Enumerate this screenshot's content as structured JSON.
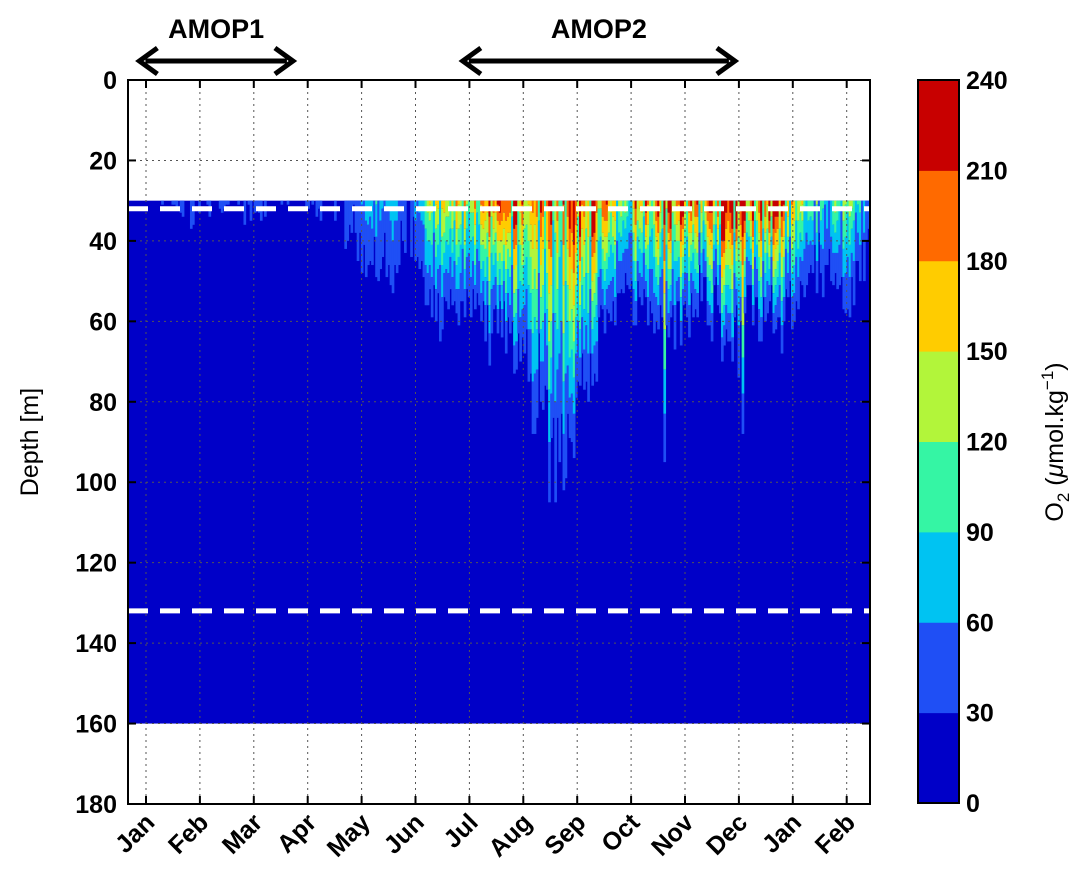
{
  "chart_data": {
    "type": "heatmap",
    "ylabel": "Depth [m]",
    "y_range": [
      0,
      180
    ],
    "y_inverted": true,
    "y_ticks": [
      "0",
      "20",
      "40",
      "60",
      "80",
      "100",
      "120",
      "140",
      "160",
      "180"
    ],
    "y_tick_values": [
      0,
      20,
      40,
      60,
      80,
      100,
      120,
      140,
      160,
      180
    ],
    "x_ticks": [
      "Jan",
      "Feb",
      "Mar",
      "Apr",
      "May",
      "Jun",
      "Jul",
      "Aug",
      "Sep",
      "Oct",
      "Nov",
      "Dec",
      "Jan",
      "Feb"
    ],
    "x_range_months": [
      0,
      13.8
    ],
    "grid": true,
    "data_depth_range": [
      30,
      160
    ],
    "reference_depths": [
      32,
      132
    ],
    "colorbar": {
      "levels": [
        0,
        30,
        60,
        90,
        120,
        150,
        180,
        210,
        240
      ],
      "tick_labels": [
        "0",
        "30",
        "60",
        "90",
        "120",
        "150",
        "180",
        "210",
        "240"
      ],
      "colors": [
        "#0000c8",
        "#1f4ff5",
        "#00c3f2",
        "#35f5a4",
        "#b2f53a",
        "#ffcc00",
        "#ff6a00",
        "#c80000"
      ],
      "label_main": "O",
      "label_sub": "2",
      "label_unit_prefix": " (",
      "label_unit_mu": "μ",
      "label_unit_text": "mol.kg",
      "label_unit_exp": "−1",
      "label_unit_suffix": ")"
    },
    "campaigns": [
      {
        "label": "AMOP1",
        "start_month": 0.1,
        "end_month": 2.8
      },
      {
        "label": "AMOP2",
        "start_month": 6.1,
        "end_month": 11.0
      }
    ],
    "profiles": [
      {
        "month": 0.2,
        "max_o2": 25,
        "o2_at_30": 25,
        "penetration_depth": 30
      },
      {
        "month": 0.8,
        "max_o2": 30,
        "o2_at_30": 30,
        "penetration_depth": 55
      },
      {
        "month": 1.5,
        "max_o2": 25,
        "o2_at_30": 25,
        "penetration_depth": 40
      },
      {
        "month": 1.9,
        "max_o2": 30,
        "o2_at_30": 30,
        "penetration_depth": 62
      },
      {
        "month": 2.7,
        "max_o2": 20,
        "o2_at_30": 20,
        "penetration_depth": 30
      },
      {
        "month": 3.4,
        "max_o2": 30,
        "o2_at_30": 30,
        "penetration_depth": 60
      },
      {
        "month": 3.9,
        "max_o2": 40,
        "o2_at_30": 40,
        "penetration_depth": 62
      },
      {
        "month": 4.3,
        "max_o2": 70,
        "o2_at_30": 70,
        "penetration_depth": 66
      },
      {
        "month": 4.9,
        "max_o2": 50,
        "o2_at_30": 50,
        "penetration_depth": 68
      },
      {
        "month": 5.1,
        "max_o2": 90,
        "o2_at_30": 90,
        "penetration_depth": 60
      },
      {
        "month": 5.4,
        "max_o2": 120,
        "o2_at_30": 120,
        "penetration_depth": 65
      },
      {
        "month": 5.8,
        "max_o2": 140,
        "o2_at_30": 140,
        "penetration_depth": 68
      },
      {
        "month": 6.2,
        "max_o2": 150,
        "o2_at_30": 150,
        "penetration_depth": 67
      },
      {
        "month": 6.7,
        "max_o2": 175,
        "o2_at_30": 175,
        "penetration_depth": 70
      },
      {
        "month": 7.2,
        "max_o2": 170,
        "o2_at_30": 170,
        "penetration_depth": 90
      },
      {
        "month": 7.6,
        "max_o2": 165,
        "o2_at_30": 165,
        "penetration_depth": 120
      },
      {
        "month": 8.0,
        "max_o2": 180,
        "o2_at_30": 180,
        "penetration_depth": 100
      },
      {
        "month": 8.4,
        "max_o2": 200,
        "o2_at_30": 200,
        "penetration_depth": 70
      },
      {
        "month": 8.8,
        "max_o2": 100,
        "o2_at_30": 100,
        "penetration_depth": 60
      },
      {
        "month": 9.2,
        "max_o2": 185,
        "o2_at_30": 185,
        "penetration_depth": 65
      },
      {
        "month": 9.6,
        "max_o2": 205,
        "o2_at_30": 205,
        "penetration_depth": 70
      },
      {
        "month": 10.0,
        "max_o2": 175,
        "o2_at_30": 175,
        "penetration_depth": 67
      },
      {
        "month": 10.4,
        "max_o2": 165,
        "o2_at_30": 165,
        "penetration_depth": 62
      },
      {
        "month": 10.8,
        "max_o2": 215,
        "o2_at_30": 215,
        "penetration_depth": 72
      },
      {
        "month": 11.2,
        "max_o2": 180,
        "o2_at_30": 180,
        "penetration_depth": 64
      },
      {
        "month": 11.6,
        "max_o2": 200,
        "o2_at_30": 200,
        "penetration_depth": 66
      },
      {
        "month": 12.0,
        "max_o2": 130,
        "o2_at_30": 130,
        "penetration_depth": 64
      },
      {
        "month": 12.5,
        "max_o2": 80,
        "o2_at_30": 80,
        "penetration_depth": 60
      },
      {
        "month": 13.0,
        "max_o2": 120,
        "o2_at_30": 120,
        "penetration_depth": 65
      },
      {
        "month": 13.6,
        "max_o2": 40,
        "o2_at_30": 40,
        "penetration_depth": 55
      }
    ]
  }
}
